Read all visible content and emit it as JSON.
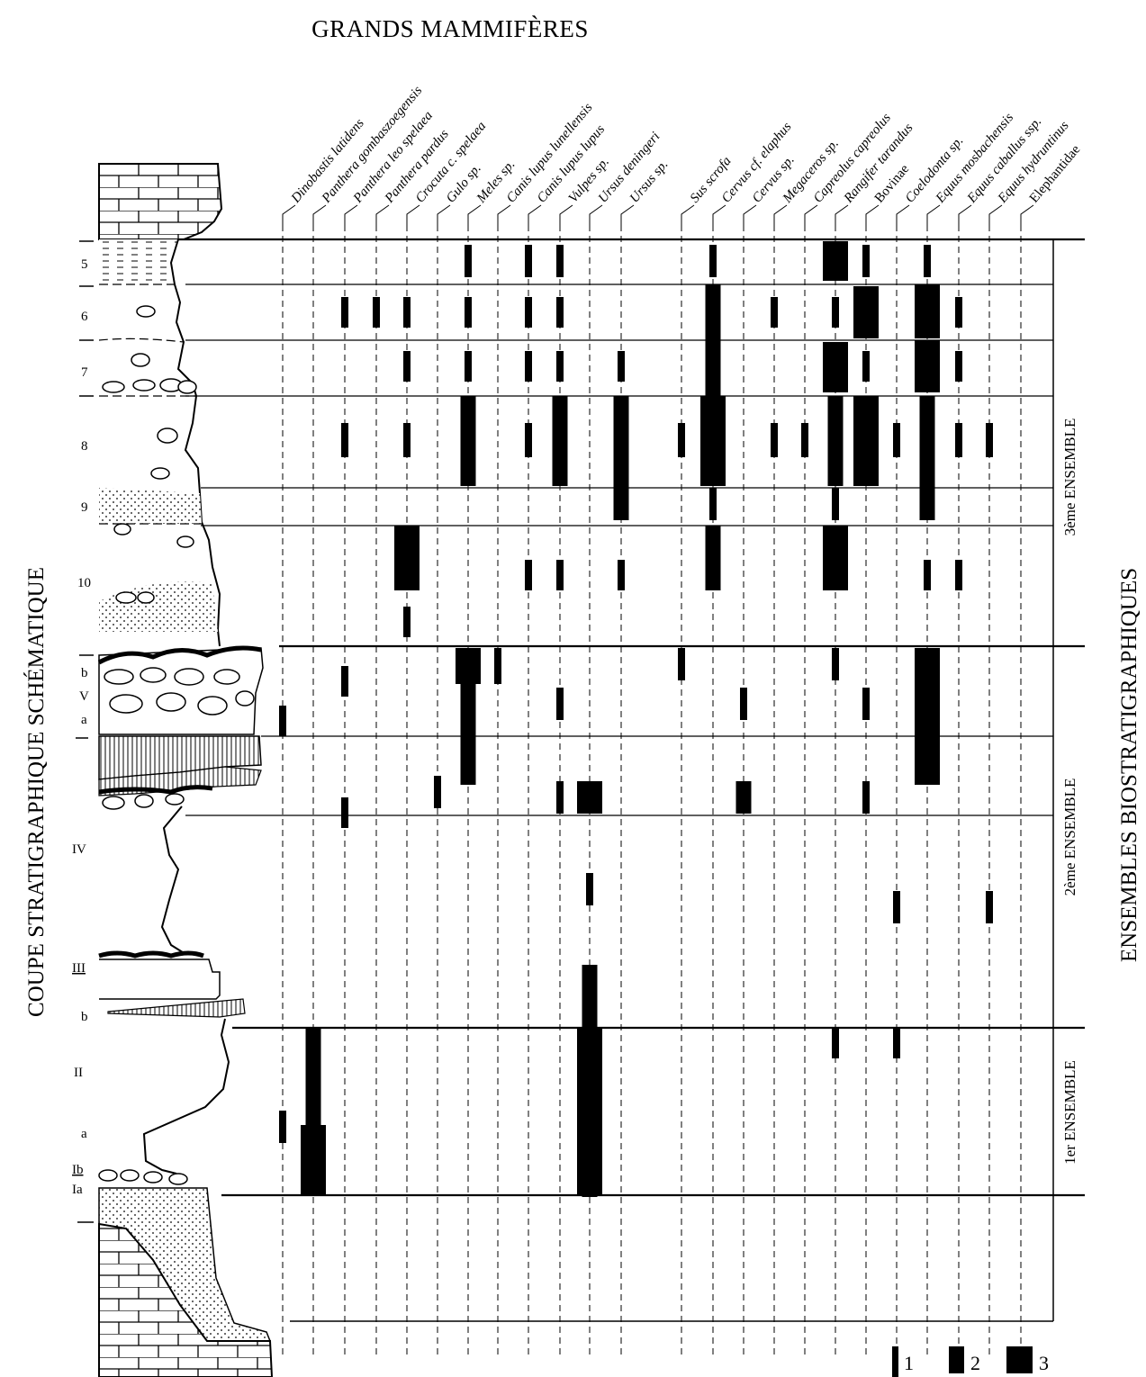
{
  "title": "GRANDS MAMMIFÈRES",
  "left_label": "COUPE STRATIGRAPHIQUE SCHÉMATIQUE",
  "right_label": "ENSEMBLES BIOSTRATIGRAPHIQUES",
  "ensembles": [
    {
      "ordinal": "3ème",
      "word": "ENSEMBLE"
    },
    {
      "ordinal": "2ème",
      "word": "ENSEMBLE"
    },
    {
      "ordinal": "1er",
      "word": "ENSEMBLE"
    }
  ],
  "layers": [
    "5",
    "6",
    "7",
    "8",
    "9",
    "10",
    "b",
    "V",
    "a",
    "IV",
    "III",
    "b",
    "II",
    "a",
    "Ib",
    "Ia"
  ],
  "taxa": [
    "Dinobastis latidens",
    "Panthera gombaszoegensis",
    "Panthera leo spelaea",
    "Panthera pardus",
    "Crocuta c. spelaea",
    "Gulo sp.",
    "Meles sp.",
    "Canis lupus lunellensis",
    "Canis lupus lupus",
    "Vulpes sp.",
    "Ursus deningeri",
    "Ursus sp.",
    "Sus scrofa",
    "Cervus cf. elaphus",
    "Cervus sp.",
    "Megaceros sp.",
    "Capreolus capreolus",
    "Rangifer tarandus",
    "Bovinae",
    "Coelodonta sp.",
    "Equus mosbachensis",
    "Equus caballus ssp.",
    "Equus hydruntinus",
    "Elephantidae"
  ],
  "legend": [
    "1",
    "2",
    "3"
  ]
}
